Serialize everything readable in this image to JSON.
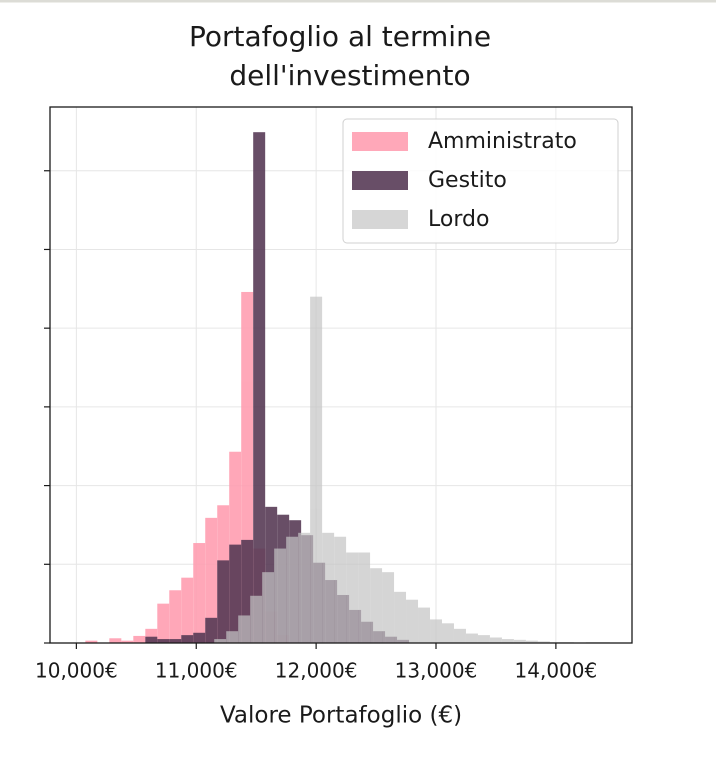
{
  "chart_data": {
    "type": "histogram",
    "title": [
      "Portafoglio al termine",
      "dell'investimento"
    ],
    "xlabel": "Valore Portafoglio (€)",
    "xlim": [
      9780,
      14635
    ],
    "xticks": [
      {
        "value": 10000,
        "label": "10,000€"
      },
      {
        "value": 11000,
        "label": "11,000€"
      },
      {
        "value": 12000,
        "label": "12,000€"
      },
      {
        "value": 13000,
        "label": "13,000€"
      },
      {
        "value": 14000,
        "label": "14,000€"
      }
    ],
    "ylim": [
      0,
      6.81
    ],
    "yticks": [
      0,
      1,
      2,
      3,
      4,
      5,
      6
    ],
    "grid": true,
    "legend": "upper right",
    "series": [
      {
        "name": "Amministrato",
        "color": "#ff9eb1",
        "alpha": 0.9,
        "bins": [
          10075,
          10175,
          10275,
          10375,
          10475,
          10575,
          10675,
          10775,
          10875,
          10975,
          11075,
          11175,
          11275,
          11375,
          11475,
          11575,
          11675,
          11775
        ],
        "values": [
          0.03,
          0,
          0.06,
          0.03,
          0.09,
          0.18,
          0.5,
          0.67,
          0.83,
          1.27,
          1.59,
          1.75,
          2.43,
          4.46,
          1.2,
          0.4,
          0.1
        ]
      },
      {
        "name": "Gestito",
        "color": "#583b56",
        "alpha": 0.9,
        "bins": [
          10475,
          10575,
          10675,
          10775,
          10875,
          10975,
          11075,
          11175,
          11275,
          11375,
          11475,
          11575,
          11675,
          11775,
          11875,
          11975,
          12075,
          12175,
          12275,
          12375,
          12475,
          12575,
          12675,
          12775
        ],
        "values": [
          0,
          0.08,
          0.05,
          0.05,
          0.1,
          0.13,
          0.32,
          1.05,
          1.25,
          1.31,
          6.49,
          1.73,
          1.63,
          1.56,
          1.37,
          1.02,
          0.8,
          0.61,
          0.42,
          0.27,
          0.15,
          0.08,
          0.04
        ]
      },
      {
        "name": "Lordo",
        "color": "#c4c4c4",
        "alpha": 0.7,
        "bins": [
          11150,
          11250,
          11350,
          11450,
          11550,
          11650,
          11750,
          11850,
          11950,
          12050,
          12150,
          12250,
          12350,
          12450,
          12550,
          12650,
          12750,
          12850,
          12950,
          13050,
          13150,
          13250,
          13350,
          13450,
          13550,
          13650,
          13750,
          13850,
          13950,
          14050,
          14150,
          14250,
          14350,
          14450
        ],
        "values": [
          0.05,
          0.15,
          0.35,
          0.6,
          0.9,
          1.2,
          1.35,
          1.4,
          4.4,
          1.4,
          1.35,
          1.15,
          1.15,
          0.95,
          0.9,
          0.65,
          0.55,
          0.45,
          0.3,
          0.25,
          0.18,
          0.12,
          0.1,
          0.07,
          0.05,
          0.04,
          0.03,
          0.02,
          0.01,
          0.01,
          0,
          0.01,
          0.01
        ]
      }
    ]
  }
}
